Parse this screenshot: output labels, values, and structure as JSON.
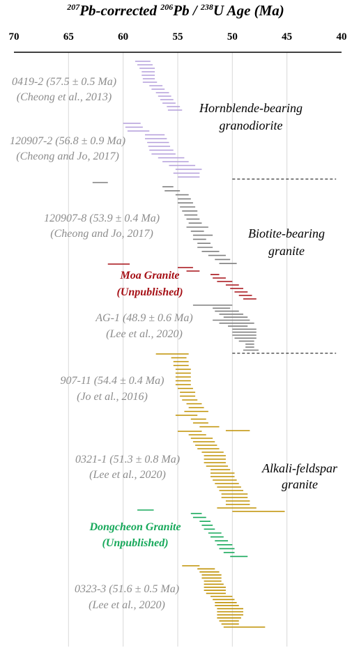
{
  "chart_data": {
    "type": "range",
    "title": {
      "pre": "207",
      "a": "Pb-corrected ",
      "sup2": "206",
      "b": "Pb / ",
      "sup3": "238",
      "c": "U Age (Ma)"
    },
    "xlim": [
      70,
      40
    ],
    "x_reversed": true,
    "xticks": [
      "70",
      "65",
      "60",
      "55",
      "50",
      "45",
      "40"
    ],
    "grid": "vertical",
    "colors": {
      "hornblende": "#b39ddb",
      "biotite": "#7f7f7f",
      "moa": "#a50f15",
      "alkali": "#bf9000",
      "dongcheon": "#16a85a",
      "axis": "#000000",
      "grid": "#d9d9d9",
      "sample_text": "#8c8c8c",
      "moa_text": "#a50f15",
      "dongcheon_text": "#16a85a"
    },
    "samples": [
      {
        "line1": "0419-2 (57.5 ± 0.5 Ma)",
        "line2": "(Cheong et al., 2013)",
        "color_key": "sample_text"
      },
      {
        "line1": "120907-2 (56.8 ± 0.9 Ma)",
        "line2": "(Cheong and Jo, 2017)",
        "color_key": "sample_text"
      },
      {
        "line1": "120907-8 (53.9 ± 0.4 Ma)",
        "line2": "(Cheong and Jo, 2017)",
        "color_key": "sample_text"
      },
      {
        "line1": "Moa Granite",
        "line2": "(Unpublished)",
        "color_key": "moa_text",
        "bold": true
      },
      {
        "line1": "AG-1 (48.9 ± 0.6 Ma)",
        "line2": "(Lee et al., 2020)",
        "color_key": "sample_text"
      },
      {
        "line1": "907-11 (54.4 ± 0.4 Ma)",
        "line2": "(Jo et al., 2016)",
        "color_key": "sample_text"
      },
      {
        "line1": "0321-1 (51.3 ± 0.8 Ma)",
        "line2": "(Lee et al., 2020)",
        "color_key": "sample_text"
      },
      {
        "line1": "Dongcheon Granite",
        "line2": "(Unpublished)",
        "color_key": "dongcheon_text",
        "bold": true
      },
      {
        "line1": "0323-3 (51.6 ± 0.5 Ma)",
        "line2": "(Lee et al., 2020)",
        "color_key": "sample_text"
      }
    ],
    "rock_units": [
      {
        "line1": "Hornblende-bearing",
        "line2": "granodiorite"
      },
      {
        "line1": "Biotite-bearing",
        "line2": "granite"
      },
      {
        "line1": "Alkali-feldspar",
        "line2": "granite"
      }
    ],
    "series": [
      {
        "name": "0419-2",
        "color_key": "hornblende",
        "ranges": [
          [
            58.9,
            57.5
          ],
          [
            58.7,
            57.3
          ],
          [
            58.5,
            57.1
          ],
          [
            58.3,
            57.1
          ],
          [
            58.3,
            57.1
          ],
          [
            58.2,
            57.1
          ],
          [
            58.2,
            56.9
          ],
          [
            57.6,
            56.4
          ],
          [
            57.4,
            56.2
          ],
          [
            57.0,
            55.8
          ],
          [
            56.8,
            55.6
          ],
          [
            56.6,
            55.4
          ],
          [
            56.4,
            55.2
          ],
          [
            56.0,
            54.8
          ],
          [
            55.9,
            54.6
          ]
        ]
      },
      {
        "name": "120907-2",
        "color_key": "hornblende",
        "ranges": [
          [
            60.0,
            58.4
          ],
          [
            59.8,
            58.2
          ],
          [
            59.6,
            57.6
          ],
          [
            58.0,
            56.2
          ],
          [
            58.0,
            56.0
          ],
          [
            57.8,
            55.8
          ],
          [
            57.7,
            55.7
          ],
          [
            57.6,
            55.4
          ],
          [
            57.4,
            55.2
          ],
          [
            56.8,
            54.4
          ],
          [
            56.4,
            54.0
          ],
          [
            55.8,
            53.4
          ],
          [
            55.2,
            52.8
          ],
          [
            55.4,
            53.0
          ],
          [
            55.0,
            53.0
          ]
        ]
      },
      {
        "name": "120907-8",
        "color_key": "biotite",
        "ranges": [
          [
            62.8,
            61.4
          ],
          [
            56.4,
            55.4
          ],
          [
            56.2,
            54.8
          ],
          [
            55.2,
            54.0
          ],
          [
            55.0,
            53.8
          ],
          [
            55.0,
            53.6
          ],
          [
            54.8,
            53.4
          ],
          [
            54.6,
            53.2
          ],
          [
            54.4,
            53.2
          ],
          [
            54.2,
            53.0
          ],
          [
            54.0,
            52.8
          ],
          [
            54.2,
            52.2
          ],
          [
            53.8,
            52.6
          ],
          [
            53.6,
            51.8
          ],
          [
            53.6,
            52.4
          ],
          [
            53.2,
            52.0
          ],
          [
            53.2,
            51.8
          ],
          [
            52.8,
            51.2
          ],
          [
            52.2,
            50.6
          ],
          [
            51.6,
            50.2
          ],
          [
            51.2,
            49.6
          ]
        ]
      },
      {
        "name": "Moa Granite",
        "color_key": "moa",
        "ranges": [
          [
            61.4,
            59.4
          ],
          [
            55.0,
            53.6
          ],
          [
            54.2,
            53.0
          ],
          [
            52.0,
            51.2
          ],
          [
            51.8,
            50.6
          ],
          [
            51.4,
            50.0
          ],
          [
            50.6,
            49.4
          ],
          [
            50.2,
            49.0
          ],
          [
            49.8,
            48.6
          ],
          [
            49.4,
            48.2
          ],
          [
            49.0,
            47.8
          ]
        ]
      },
      {
        "name": "AG-1",
        "color_key": "biotite",
        "ranges": [
          [
            53.6,
            50.0
          ],
          [
            51.8,
            50.2
          ],
          [
            51.6,
            49.4
          ],
          [
            51.2,
            49.0
          ],
          [
            50.8,
            48.6
          ],
          [
            51.8,
            48.4
          ],
          [
            51.2,
            48.0
          ],
          [
            50.4,
            48.6
          ],
          [
            50.0,
            47.8
          ],
          [
            50.0,
            47.8
          ],
          [
            50.0,
            47.8
          ],
          [
            49.8,
            47.8
          ],
          [
            49.4,
            48.0
          ],
          [
            48.8,
            48.0
          ],
          [
            48.8,
            48.0
          ],
          [
            49.0,
            47.6
          ]
        ]
      },
      {
        "name": "907-11",
        "color_key": "alkali",
        "ranges": [
          [
            57.0,
            54.0
          ],
          [
            55.6,
            54.2
          ],
          [
            55.4,
            54.0
          ],
          [
            55.4,
            54.0
          ],
          [
            55.2,
            53.8
          ],
          [
            55.2,
            53.8
          ],
          [
            55.2,
            53.8
          ],
          [
            55.2,
            53.8
          ],
          [
            55.2,
            53.8
          ],
          [
            55.0,
            53.6
          ],
          [
            54.8,
            53.4
          ],
          [
            54.8,
            53.4
          ],
          [
            54.6,
            53.2
          ],
          [
            54.2,
            52.8
          ],
          [
            54.0,
            52.6
          ],
          [
            54.4,
            52.2
          ],
          [
            55.2,
            53.2
          ],
          [
            53.8,
            52.4
          ],
          [
            53.6,
            52.2
          ],
          [
            53.0,
            51.2
          ],
          [
            50.6,
            48.4
          ]
        ]
      },
      {
        "name": "0321-1",
        "color_key": "alkali",
        "ranges": [
          [
            55.0,
            52.8
          ],
          [
            54.0,
            52.4
          ],
          [
            53.8,
            51.8
          ],
          [
            53.6,
            51.6
          ],
          [
            53.4,
            51.4
          ],
          [
            53.2,
            51.2
          ],
          [
            52.8,
            50.8
          ],
          [
            52.6,
            50.6
          ],
          [
            52.6,
            50.6
          ],
          [
            52.6,
            50.6
          ],
          [
            52.4,
            50.4
          ],
          [
            52.0,
            50.2
          ],
          [
            52.0,
            49.8
          ],
          [
            52.0,
            49.8
          ],
          [
            51.8,
            49.6
          ],
          [
            51.6,
            49.4
          ],
          [
            51.4,
            49.2
          ],
          [
            51.2,
            49.0
          ],
          [
            51.0,
            48.6
          ],
          [
            51.0,
            48.6
          ],
          [
            50.6,
            48.4
          ],
          [
            50.6,
            48.4
          ],
          [
            51.4,
            47.8
          ],
          [
            50.0,
            45.2
          ]
        ]
      },
      {
        "name": "Dongcheon Granite",
        "color_key": "dongcheon",
        "ranges": [
          [
            58.7,
            57.2
          ],
          [
            53.8,
            52.8
          ],
          [
            53.6,
            52.4
          ],
          [
            53.0,
            52.0
          ],
          [
            52.8,
            51.8
          ],
          [
            52.6,
            51.6
          ],
          [
            52.2,
            51.0
          ],
          [
            52.0,
            50.8
          ],
          [
            51.6,
            50.4
          ],
          [
            51.4,
            50.0
          ],
          [
            51.2,
            49.8
          ],
          [
            50.8,
            49.8
          ],
          [
            50.2,
            48.6
          ]
        ]
      },
      {
        "name": "0323-3",
        "color_key": "alkali",
        "ranges": [
          [
            54.6,
            53.0
          ],
          [
            53.2,
            51.6
          ],
          [
            53.0,
            51.2
          ],
          [
            52.8,
            51.0
          ],
          [
            52.8,
            51.0
          ],
          [
            52.6,
            51.0
          ],
          [
            52.6,
            50.8
          ],
          [
            52.6,
            50.6
          ],
          [
            52.6,
            50.6
          ],
          [
            52.4,
            50.6
          ],
          [
            52.0,
            50.0
          ],
          [
            51.8,
            49.8
          ],
          [
            51.6,
            49.6
          ],
          [
            51.6,
            49.4
          ],
          [
            51.4,
            49.0
          ],
          [
            51.4,
            49.0
          ],
          [
            51.4,
            49.0
          ],
          [
            51.4,
            49.2
          ],
          [
            51.2,
            49.4
          ],
          [
            51.0,
            49.4
          ],
          [
            50.8,
            47.0
          ]
        ]
      }
    ],
    "dashed_separators_from_x": 50,
    "dashed_separators_to_x": 40.5
  }
}
